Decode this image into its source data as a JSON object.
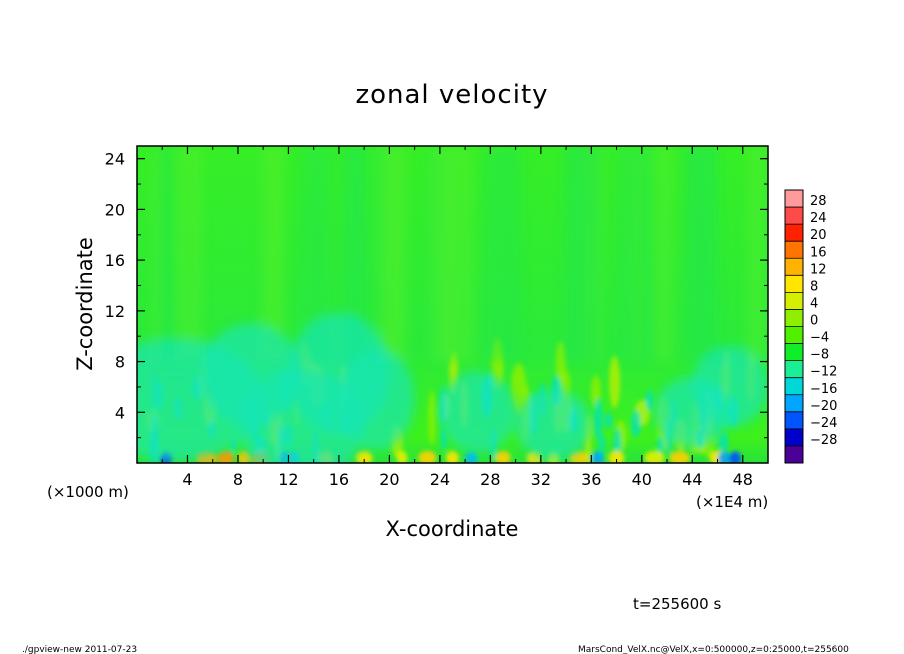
{
  "chart_data": {
    "type": "heatmap",
    "title": "zonal velocity",
    "xlabel": "X-coordinate",
    "ylabel": "Z-coordinate",
    "x_unit_label": "(×1E4 m)",
    "y_unit_label": "(×1000 m)",
    "xlim": [
      0,
      50
    ],
    "ylim": [
      0,
      25
    ],
    "x_ticks": [
      4,
      8,
      12,
      16,
      20,
      24,
      28,
      32,
      36,
      40,
      44,
      48
    ],
    "y_ticks": [
      4,
      8,
      12,
      16,
      20,
      24
    ],
    "grid": false,
    "colorbar": {
      "levels": [
        28,
        24,
        20,
        16,
        12,
        8,
        4,
        0,
        -4,
        -8,
        -12,
        -16,
        -20,
        -24,
        -28
      ],
      "colors": [
        "#ff9b9b",
        "#ff4a4a",
        "#ff2200",
        "#ff7300",
        "#ffb300",
        "#ffe600",
        "#d4f000",
        "#8ef000",
        "#4ff000",
        "#10ee2a",
        "#1aef96",
        "#00d8d8",
        "#00a6ff",
        "#0055ff",
        "#0000cc",
        "#4b0096"
      ]
    }
  },
  "annotations": {
    "time": "t=255600 s",
    "footer_left": "./gpview-new   2011-07-23",
    "footer_right": "MarsCond_VelX.nc@VelX,x=0:500000,z=0:25000,t=255600"
  }
}
